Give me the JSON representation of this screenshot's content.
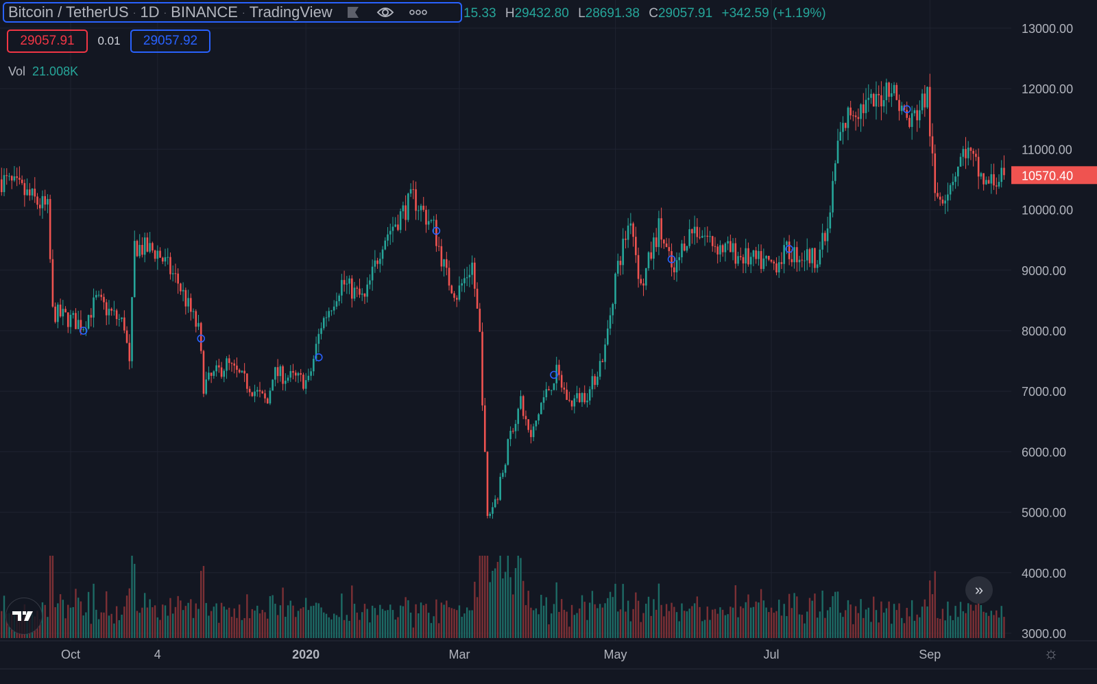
{
  "header": {
    "symbol": "Bitcoin / TetherUS",
    "interval": "1D",
    "exchange": "BINANCE",
    "source": "TradingView",
    "separator": "·",
    "ohlc": {
      "open_fragment": "15.33",
      "high_label": "H",
      "high": "29432.80",
      "low_label": "L",
      "low": "28691.38",
      "close_label": "C",
      "close": "29057.91",
      "change": "+342.59 (+1.19%)"
    },
    "sell_price": "29057.91",
    "spread": "0.01",
    "buy_price": "29057.92",
    "volume_label": "Vol",
    "volume_value": "21.008K"
  },
  "colors": {
    "background": "#131722",
    "up": "#26a69a",
    "down": "#ef5350",
    "accent": "#2962ff",
    "grid": "#1f2330"
  },
  "icons": {
    "flag": "flag-icon",
    "eye": "eye-icon",
    "more": "more-icon",
    "logo": "tradingview-logo",
    "scroll": "double-chevron-right-icon",
    "settings": "gear-icon"
  },
  "chart_data": {
    "type": "candlestick",
    "interval": "1D",
    "date_range": [
      "2019-09-04",
      "2020-09-30"
    ],
    "y_axis": {
      "range": [
        3000,
        13000
      ],
      "ticks": [
        "13000.00",
        "12000.00",
        "11000.00",
        "10000.00",
        "9000.00",
        "8000.00",
        "7000.00",
        "6000.00",
        "5000.00",
        "4000.00",
        "3000.00"
      ]
    },
    "x_axis": {
      "ticks": [
        {
          "label": "Oct",
          "date": "2019-10-01"
        },
        {
          "label": "4",
          "date": "2019-11-04"
        },
        {
          "label": "2020",
          "date": "2020-01-01",
          "bold": true
        },
        {
          "label": "Mar",
          "date": "2020-03-01"
        },
        {
          "label": "May",
          "date": "2020-05-01"
        },
        {
          "label": "Jul",
          "date": "2020-07-01"
        },
        {
          "label": "Sep",
          "date": "2020-09-01"
        }
      ]
    },
    "last_price": "10570.40",
    "grid": true,
    "close_path": [
      [
        "2019-09-04",
        10500
      ],
      [
        "2019-09-12",
        10300
      ],
      [
        "2019-09-22",
        10000
      ],
      [
        "2019-09-24",
        8300
      ],
      [
        "2019-10-06",
        8100
      ],
      [
        "2019-10-11",
        8500
      ],
      [
        "2019-10-22",
        8100
      ],
      [
        "2019-10-24",
        7400
      ],
      [
        "2019-10-26",
        9400
      ],
      [
        "2019-11-04",
        9300
      ],
      [
        "2019-11-12",
        8800
      ],
      [
        "2019-11-20",
        8000
      ],
      [
        "2019-11-22",
        7100
      ],
      [
        "2019-12-01",
        7450
      ],
      [
        "2019-12-17",
        6800
      ],
      [
        "2019-12-19",
        7300
      ],
      [
        "2020-01-02",
        7150
      ],
      [
        "2020-01-07",
        8100
      ],
      [
        "2020-01-15",
        8800
      ],
      [
        "2020-01-24",
        8500
      ],
      [
        "2020-01-31",
        9500
      ],
      [
        "2020-02-12",
        10200
      ],
      [
        "2020-02-20",
        9700
      ],
      [
        "2020-02-25",
        8900
      ],
      [
        "2020-02-29",
        8600
      ],
      [
        "2020-03-06",
        9100
      ],
      [
        "2020-03-09",
        7900
      ],
      [
        "2020-03-12",
        4900
      ],
      [
        "2020-03-16",
        5300
      ],
      [
        "2020-03-21",
        6300
      ],
      [
        "2020-03-25",
        6800
      ],
      [
        "2020-03-29",
        6200
      ],
      [
        "2020-04-02",
        6800
      ],
      [
        "2020-04-08",
        7300
      ],
      [
        "2020-04-13",
        6800
      ],
      [
        "2020-04-21",
        7000
      ],
      [
        "2020-04-27",
        7700
      ],
      [
        "2020-05-01",
        8900
      ],
      [
        "2020-05-07",
        9900
      ],
      [
        "2020-05-11",
        8700
      ],
      [
        "2020-05-18",
        9700
      ],
      [
        "2020-05-24",
        8900
      ],
      [
        "2020-05-28",
        9500
      ],
      [
        "2020-06-01",
        9700
      ],
      [
        "2020-06-10",
        9400
      ],
      [
        "2020-06-24",
        9150
      ],
      [
        "2020-07-02",
        9100
      ],
      [
        "2020-07-07",
        9300
      ],
      [
        "2020-07-18",
        9200
      ],
      [
        "2020-07-23",
        9600
      ],
      [
        "2020-07-27",
        11100
      ],
      [
        "2020-08-01",
        11650
      ],
      [
        "2020-08-11",
        11750
      ],
      [
        "2020-08-16",
        12100
      ],
      [
        "2020-08-24",
        11400
      ],
      [
        "2020-08-31",
        11900
      ],
      [
        "2020-09-03",
        10200
      ],
      [
        "2020-09-07",
        10300
      ],
      [
        "2020-09-15",
        11000
      ],
      [
        "2020-09-23",
        10400
      ],
      [
        "2020-09-30",
        10570
      ]
    ],
    "markers": [
      {
        "date": "2019-10-06",
        "price": 8000
      },
      {
        "date": "2019-11-21",
        "price": 7870
      },
      {
        "date": "2020-01-06",
        "price": 7560
      },
      {
        "date": "2020-02-21",
        "price": 9650
      },
      {
        "date": "2020-04-07",
        "price": 7270
      },
      {
        "date": "2020-05-23",
        "price": 9180
      },
      {
        "date": "2020-07-08",
        "price": 9350
      },
      {
        "date": "2020-08-23",
        "price": 11660
      }
    ]
  }
}
